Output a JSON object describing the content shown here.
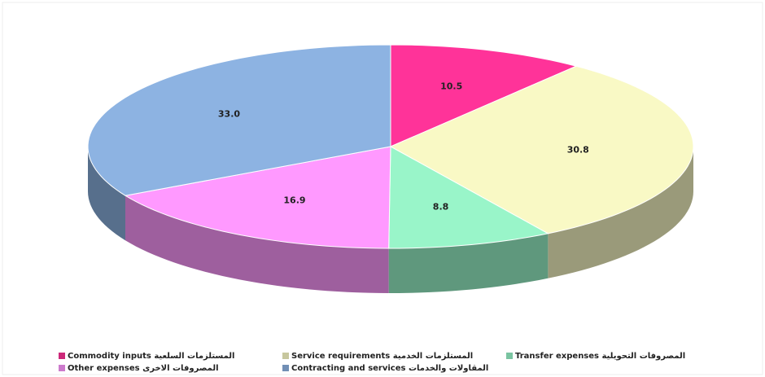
{
  "chart_data": {
    "type": "pie",
    "categories": [
      "Commodity inputs المستلزمات السلعية",
      "Service requirements المستلزمات الخدمية",
      "Transfer expenses المصروفات التحويلية",
      "Other expenses المصروفات الاخرى",
      "Contracting and services المقاولات والخدمات"
    ],
    "values": [
      10.5,
      30.8,
      8.8,
      16.9,
      33.0
    ],
    "value_labels": [
      "10.5",
      "30.8",
      "8.8",
      "16.9",
      "33.0"
    ],
    "colors": [
      "#ff3399",
      "#f9f9c5",
      "#99f5c9",
      "#ff99ff",
      "#8db3e2"
    ],
    "legend": "bottom"
  }
}
